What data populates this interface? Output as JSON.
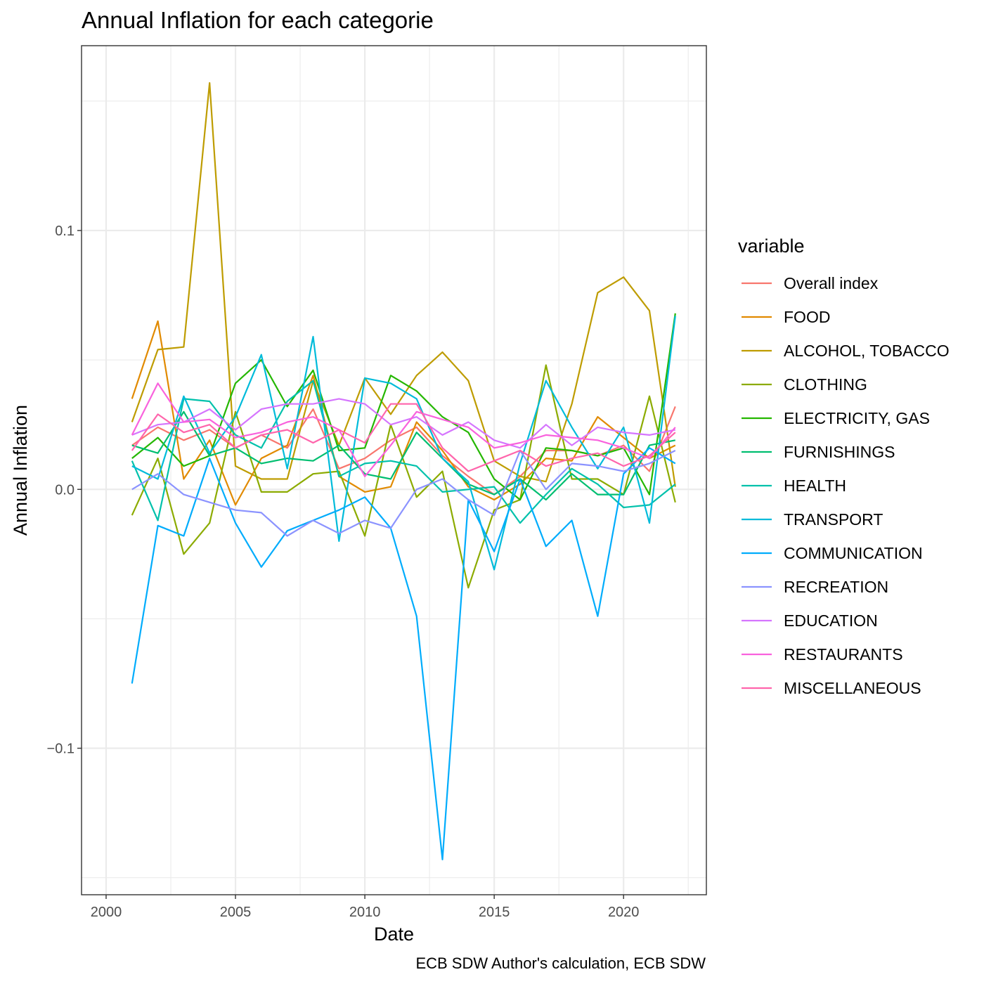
{
  "chart_data": {
    "type": "line",
    "title": "Annual Inflation for each categorie",
    "xlabel": "Date",
    "ylabel": "Annual Inflation",
    "caption": "ECB SDW Author's calculation, ECB SDW",
    "legend_title": "variable",
    "legend_position": "right",
    "grid": true,
    "xlim": [
      1999.05,
      2023.2
    ],
    "ylim": [
      -0.1566,
      0.1714
    ],
    "x_ticks": [
      2000,
      2005,
      2010,
      2015,
      2020
    ],
    "x_tick_labels": [
      "2000",
      "2005",
      "2010",
      "2015",
      "2020"
    ],
    "y_ticks": [
      -0.1,
      0.0,
      0.1
    ],
    "y_tick_labels": [
      "−0.1",
      "0.0",
      "0.1"
    ],
    "x": [
      2001,
      2002,
      2003,
      2004,
      2005,
      2006,
      2007,
      2008,
      2009,
      2010,
      2011,
      2012,
      2013,
      2014,
      2015,
      2016,
      2017,
      2018,
      2019,
      2020,
      2021,
      2022
    ],
    "series": [
      {
        "name": "Overall index",
        "color": "#F8766D",
        "values": [
          0.017,
          0.024,
          0.019,
          0.023,
          0.016,
          0.021,
          0.016,
          0.031,
          0.008,
          0.012,
          0.019,
          0.024,
          0.013,
          0.005,
          -0.002,
          0.005,
          0.015,
          0.015,
          0.013,
          0.017,
          0.007,
          0.032
        ]
      },
      {
        "name": "FOOD",
        "color": "#E18A00",
        "values": [
          0.035,
          0.065,
          0.004,
          0.019,
          -0.006,
          0.012,
          0.017,
          0.044,
          0.005,
          -0.001,
          0.001,
          0.026,
          0.015,
          0.001,
          -0.004,
          0.002,
          0.012,
          0.011,
          0.028,
          0.02,
          0.012,
          0.017
        ]
      },
      {
        "name": "ALCOHOL, TOBACCO",
        "color": "#BE9C00",
        "values": [
          0.026,
          0.054,
          0.055,
          0.157,
          0.009,
          0.004,
          0.004,
          0.042,
          0.017,
          0.043,
          0.029,
          0.044,
          0.053,
          0.042,
          0.011,
          0.005,
          0.003,
          0.033,
          0.076,
          0.082,
          0.069,
          0.001
        ]
      },
      {
        "name": "CLOTHING",
        "color": "#8CAB00",
        "values": [
          -0.01,
          0.012,
          -0.025,
          -0.013,
          0.03,
          -0.001,
          -0.001,
          0.006,
          0.007,
          -0.018,
          0.025,
          -0.003,
          0.007,
          -0.038,
          -0.008,
          -0.004,
          0.048,
          0.004,
          0.004,
          -0.002,
          0.036,
          -0.005
        ]
      },
      {
        "name": "ELECTRICITY, GAS",
        "color": "#24B700",
        "values": [
          0.012,
          0.02,
          0.009,
          0.013,
          0.041,
          0.05,
          0.032,
          0.046,
          0.015,
          0.016,
          0.044,
          0.038,
          0.028,
          0.022,
          0.004,
          -0.004,
          0.016,
          0.015,
          0.013,
          0.016,
          -0.002,
          0.068
        ]
      },
      {
        "name": "FURNISHINGS",
        "color": "#00BE70",
        "values": [
          0.017,
          0.014,
          0.03,
          0.013,
          0.016,
          0.01,
          0.012,
          0.011,
          0.017,
          0.006,
          0.004,
          0.022,
          0.012,
          0.002,
          -0.002,
          0.004,
          -0.004,
          0.006,
          -0.002,
          -0.002,
          0.017,
          0.019
        ]
      },
      {
        "name": "HEALTH",
        "color": "#00C1AB",
        "values": [
          0.011,
          -0.012,
          0.035,
          0.034,
          0.021,
          0.016,
          0.034,
          0.042,
          0.005,
          0.01,
          0.011,
          0.009,
          -0.001,
          0.0,
          0.001,
          -0.013,
          -0.002,
          0.008,
          0.002,
          -0.007,
          -0.006,
          0.002
        ]
      },
      {
        "name": "TRANSPORT",
        "color": "#00BBDA",
        "values": [
          0.009,
          0.004,
          0.036,
          0.014,
          0.028,
          0.052,
          0.008,
          0.059,
          -0.02,
          0.043,
          0.041,
          0.035,
          0.012,
          0.003,
          -0.031,
          0.01,
          0.042,
          0.024,
          0.008,
          0.024,
          -0.013,
          0.067
        ]
      },
      {
        "name": "COMMUNICATION",
        "color": "#00ACFC",
        "values": [
          -0.075,
          -0.014,
          -0.018,
          0.012,
          -0.013,
          -0.03,
          -0.016,
          -0.012,
          -0.008,
          -0.003,
          -0.015,
          -0.049,
          -0.143,
          -0.004,
          -0.024,
          0.004,
          -0.022,
          -0.012,
          -0.049,
          0.006,
          0.016,
          0.01
        ]
      },
      {
        "name": "RECREATION",
        "color": "#8B93FF",
        "values": [
          0.0,
          0.006,
          -0.002,
          -0.005,
          -0.008,
          -0.009,
          -0.018,
          -0.012,
          -0.017,
          -0.012,
          -0.015,
          0.0,
          0.004,
          -0.004,
          -0.01,
          0.015,
          0.0,
          0.01,
          0.009,
          0.007,
          0.01,
          0.015
        ]
      },
      {
        "name": "EDUCATION",
        "color": "#D575FE",
        "values": [
          0.021,
          0.025,
          0.026,
          0.031,
          0.023,
          0.031,
          0.033,
          0.033,
          0.035,
          0.033,
          0.025,
          0.028,
          0.021,
          0.026,
          0.019,
          0.016,
          0.025,
          0.017,
          0.024,
          0.022,
          0.021,
          0.023
        ]
      },
      {
        "name": "RESTAURANTS",
        "color": "#F962DD",
        "values": [
          0.021,
          0.041,
          0.026,
          0.027,
          0.02,
          0.022,
          0.026,
          0.028,
          0.023,
          0.005,
          0.017,
          0.03,
          0.027,
          0.024,
          0.016,
          0.018,
          0.021,
          0.02,
          0.019,
          0.016,
          0.012,
          0.024
        ]
      },
      {
        "name": "MISCELLANEOUS",
        "color": "#FF65AC",
        "values": [
          0.015,
          0.029,
          0.022,
          0.025,
          0.016,
          0.021,
          0.023,
          0.018,
          0.023,
          0.018,
          0.033,
          0.033,
          0.016,
          0.007,
          0.011,
          0.015,
          0.009,
          0.012,
          0.014,
          0.009,
          0.013,
          0.022
        ]
      }
    ]
  }
}
